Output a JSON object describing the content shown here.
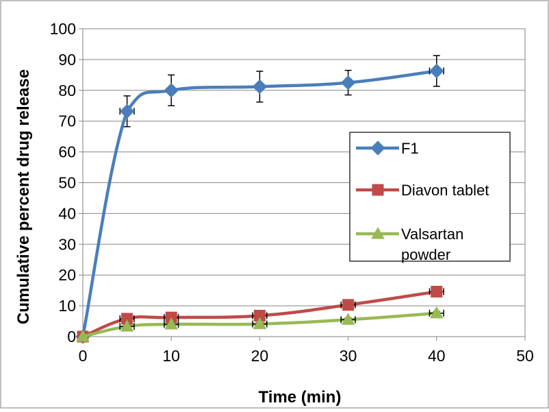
{
  "chart_data": {
    "type": "line",
    "title": "",
    "xlabel": "Time (min)",
    "ylabel": "Cumulative percent  drug release",
    "xlim": [
      0,
      50
    ],
    "ylim": [
      0,
      100
    ],
    "x_ticks": [
      0,
      10,
      20,
      30,
      40,
      50
    ],
    "y_ticks": [
      0,
      10,
      20,
      30,
      40,
      50,
      60,
      70,
      80,
      90,
      100
    ],
    "grid": "horizontal",
    "legend_position": "right",
    "series": [
      {
        "name": "F1",
        "color": "#4a7ebb",
        "marker": "diamond",
        "x": [
          0,
          5,
          10,
          20,
          30,
          40
        ],
        "y": [
          0,
          73.2,
          80,
          81.2,
          82.5,
          86.3
        ],
        "y_err": [
          0,
          5,
          5,
          5,
          4,
          5
        ],
        "x_err": [
          0,
          0.8,
          0,
          0,
          0,
          0.8
        ]
      },
      {
        "name": "Diavon tablet",
        "color": "#be4b48",
        "marker": "square",
        "x": [
          0,
          5,
          10,
          20,
          30,
          40
        ],
        "y": [
          0,
          5.8,
          6.2,
          6.8,
          10.3,
          14.6
        ],
        "y_err": [
          0,
          0.8,
          0.8,
          0.8,
          0.8,
          0.8
        ],
        "x_err": [
          0,
          0.8,
          0.8,
          0.8,
          0.8,
          0.8
        ]
      },
      {
        "name": "Valsartan powder",
        "color": "#98b954",
        "marker": "triangle",
        "x": [
          0,
          5,
          10,
          20,
          30,
          40
        ],
        "y": [
          0,
          3.3,
          4,
          4.1,
          5.5,
          7.6
        ],
        "y_err": [
          0,
          0.5,
          0.5,
          0.5,
          0.5,
          0.5
        ],
        "x_err": [
          0,
          0.8,
          0.8,
          0.8,
          0.8,
          0.8
        ]
      }
    ]
  }
}
